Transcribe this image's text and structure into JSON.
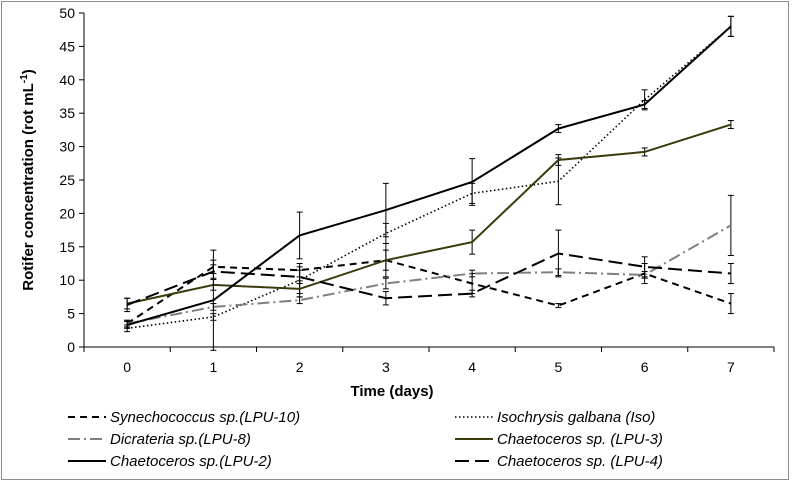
{
  "chart_data": {
    "type": "line",
    "title": "",
    "xlabel": "Time (days)",
    "ylabel_main": "Rotifer concentration (rot mL",
    "ylabel_sup": "-1",
    "ylabel_close": ")",
    "x": [
      0,
      1,
      2,
      3,
      4,
      5,
      6,
      7
    ],
    "x_tick_labels": [
      "0",
      "1",
      "2",
      "3",
      "4",
      "5",
      "6",
      "7"
    ],
    "ylim": [
      0,
      50
    ],
    "y_ticks": [
      0,
      5,
      10,
      15,
      20,
      25,
      30,
      35,
      40,
      45,
      50
    ],
    "y_tick_labels": [
      "0",
      "5",
      "10",
      "15",
      "20",
      "25",
      "30",
      "35",
      "40",
      "45",
      "50"
    ],
    "series": [
      {
        "name": "Synechococcus sp.(LPU-10)",
        "style": "short-dash",
        "color": "#000000",
        "values": [
          3.5,
          12.0,
          11.5,
          13.0,
          9.5,
          6.2,
          11.0,
          6.5
        ],
        "errors": [
          0.5,
          1.0,
          1.0,
          1.5,
          1.5,
          0.3,
          1.5,
          1.5
        ]
      },
      {
        "name": "Isochrysis galbana (Iso)",
        "style": "dotted",
        "color": "#000000",
        "values": [
          2.8,
          4.5,
          10.0,
          17.0,
          23.0,
          24.8,
          37.0,
          48.0
        ],
        "errors": [
          0.5,
          0.5,
          2.0,
          1.5,
          1.5,
          3.5,
          1.5,
          1.5
        ]
      },
      {
        "name": "Dicrateria sp.(LPU-8)",
        "style": "dash-dot",
        "color": "#7f7f7f",
        "values": [
          3.5,
          6.0,
          7.0,
          9.5,
          11.0,
          11.2,
          10.8,
          18.2
        ],
        "errors": [
          0.5,
          0.5,
          0.5,
          0.8,
          0.5,
          0.5,
          0.5,
          4.5
        ]
      },
      {
        "name": "Chaetoceros sp. (LPU-3)",
        "style": "solid",
        "color": "#3b3a0c",
        "values": [
          6.5,
          9.3,
          8.7,
          13.0,
          15.7,
          28.0,
          29.2,
          33.3
        ],
        "errors": [
          0.8,
          0.8,
          1.2,
          2.5,
          1.8,
          0.8,
          0.6,
          0.6
        ]
      },
      {
        "name": "Chaetoceros sp.(LPU-2)",
        "style": "solid",
        "color": "#000000",
        "values": [
          3.3,
          7.0,
          16.7,
          20.5,
          24.7,
          32.7,
          36.3,
          48.0
        ],
        "errors": [
          0.5,
          7.5,
          3.5,
          4.0,
          3.5,
          0.6,
          0.6,
          1.5
        ]
      },
      {
        "name": "Chaetoceros sp. (LPU-4)",
        "style": "long-dash",
        "color": "#000000",
        "values": [
          6.3,
          11.3,
          10.5,
          7.3,
          8.0,
          14.0,
          12.0,
          11.0
        ],
        "errors": [
          1.0,
          1.0,
          1.0,
          1.0,
          0.5,
          3.5,
          1.5,
          1.5
        ]
      }
    ],
    "legend_position": "bottom",
    "grid": false
  }
}
